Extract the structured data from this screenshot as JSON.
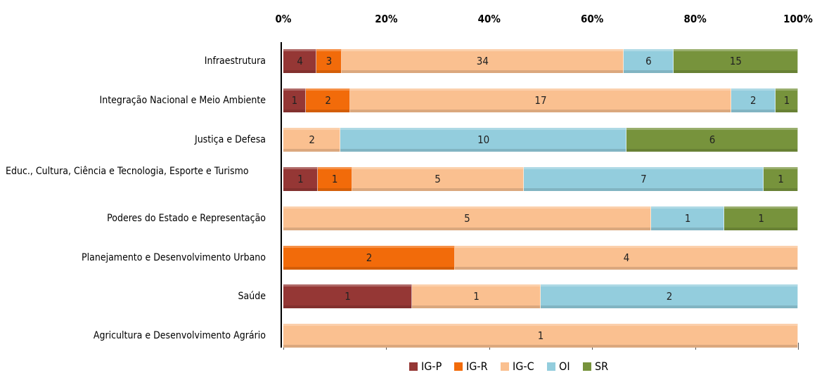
{
  "chart_data": {
    "type": "bar",
    "orientation": "horizontal",
    "stacked": "percent",
    "categories": [
      "Infraestrutura",
      "Integração Nacional e Meio Ambiente",
      "Justiça e Defesa",
      "Educ., Cultura, Ciência e Tecnologia, Esporte e Turismo",
      "Poderes do Estado e Representação",
      "Planejamento e Desenvolvimento Urbano",
      "Saúde",
      "Agricultura e Desenvolvimento Agrário"
    ],
    "series": [
      {
        "name": "IG-P",
        "color": "#953735",
        "values": [
          4,
          1,
          null,
          1,
          null,
          null,
          1,
          null
        ]
      },
      {
        "name": "IG-R",
        "color": "#f26b0a",
        "values": [
          3,
          2,
          null,
          1,
          null,
          2,
          null,
          null
        ]
      },
      {
        "name": "IG-C",
        "color": "#fac090",
        "values": [
          34,
          17,
          2,
          5,
          5,
          4,
          1,
          1
        ]
      },
      {
        "name": "OI",
        "color": "#93cddd",
        "values": [
          6,
          2,
          10,
          7,
          1,
          null,
          2,
          null
        ]
      },
      {
        "name": "SR",
        "color": "#77933c",
        "values": [
          15,
          1,
          6,
          1,
          1,
          null,
          null,
          null
        ]
      }
    ],
    "xlim": [
      0,
      100
    ],
    "xticks": [
      {
        "value": 0,
        "label": "0%"
      },
      {
        "value": 20,
        "label": "20%"
      },
      {
        "value": 40,
        "label": "40%"
      },
      {
        "value": 60,
        "label": "60%"
      },
      {
        "value": 80,
        "label": "80%"
      },
      {
        "value": 100,
        "label": "100%"
      }
    ],
    "legend": "bottom"
  }
}
